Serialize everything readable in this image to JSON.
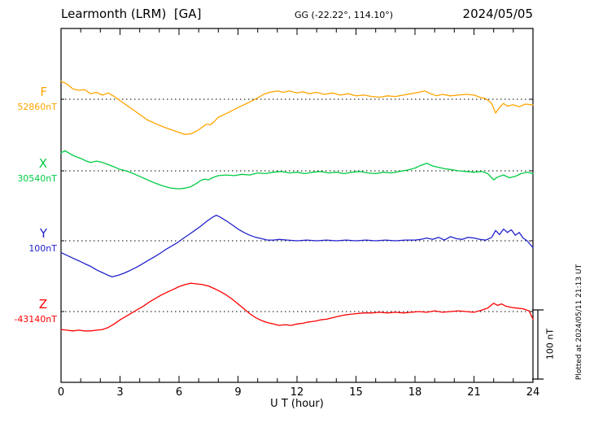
{
  "header": {
    "station": "Learmonth (LRM)  [GA]",
    "coords": "GG (-22.22°, 114.10°)",
    "date": "2024/05/05"
  },
  "side": {
    "scale_label": "100 nT",
    "plotted_at": "Plotted at 2024/05/11 21:13 UT"
  },
  "chart_data": {
    "type": "line",
    "title": "Learmonth (LRM) [GA] magnetogram 2024/05/05",
    "xlabel": "U T (hour)",
    "ylabel": "",
    "xlim": [
      0,
      24
    ],
    "x_ticks": [
      0,
      3,
      6,
      9,
      12,
      15,
      18,
      21,
      24
    ],
    "x_minor_step": 1,
    "grid": "dotted baseline per trace",
    "legend_position": "left margin, one colored label per trace",
    "scale_bar_nT": 100,
    "series": [
      {
        "name": "F",
        "color": "#FFA500",
        "base_label": "52860nT",
        "base_value_nT": 52860,
        "units": "nT offset from base value",
        "points": [
          [
            0,
            26
          ],
          [
            0.3,
            22
          ],
          [
            0.6,
            15
          ],
          [
            0.9,
            13
          ],
          [
            1.2,
            14
          ],
          [
            1.5,
            8
          ],
          [
            1.8,
            10
          ],
          [
            2.1,
            6
          ],
          [
            2.4,
            9
          ],
          [
            2.7,
            4
          ],
          [
            3,
            -2
          ],
          [
            3.3,
            -8
          ],
          [
            3.6,
            -14
          ],
          [
            4,
            -22
          ],
          [
            4.4,
            -30
          ],
          [
            4.8,
            -35
          ],
          [
            5.2,
            -40
          ],
          [
            5.6,
            -44
          ],
          [
            6,
            -48
          ],
          [
            6.3,
            -51
          ],
          [
            6.6,
            -50
          ],
          [
            6.9,
            -46
          ],
          [
            7.2,
            -40
          ],
          [
            7.4,
            -36
          ],
          [
            7.6,
            -37
          ],
          [
            7.8,
            -32
          ],
          [
            8,
            -26
          ],
          [
            8.3,
            -22
          ],
          [
            8.6,
            -18
          ],
          [
            9,
            -12
          ],
          [
            9.3,
            -8
          ],
          [
            9.6,
            -4
          ],
          [
            10,
            2
          ],
          [
            10.3,
            7
          ],
          [
            10.6,
            10
          ],
          [
            11,
            12
          ],
          [
            11.3,
            10
          ],
          [
            11.6,
            12
          ],
          [
            12,
            9
          ],
          [
            12.3,
            11
          ],
          [
            12.6,
            8
          ],
          [
            13,
            10
          ],
          [
            13.4,
            7
          ],
          [
            13.8,
            9
          ],
          [
            14.2,
            6
          ],
          [
            14.6,
            8
          ],
          [
            15,
            5
          ],
          [
            15.4,
            6
          ],
          [
            15.8,
            4
          ],
          [
            16.2,
            3
          ],
          [
            16.6,
            5
          ],
          [
            17,
            4
          ],
          [
            17.4,
            6
          ],
          [
            17.8,
            8
          ],
          [
            18.2,
            10
          ],
          [
            18.5,
            12
          ],
          [
            18.8,
            8
          ],
          [
            19.1,
            5
          ],
          [
            19.4,
            7
          ],
          [
            19.8,
            5
          ],
          [
            20.2,
            6
          ],
          [
            20.6,
            7
          ],
          [
            21,
            6
          ],
          [
            21.3,
            3
          ],
          [
            21.6,
            1
          ],
          [
            21.9,
            -6
          ],
          [
            22.1,
            -20
          ],
          [
            22.3,
            -12
          ],
          [
            22.5,
            -6
          ],
          [
            22.7,
            -10
          ],
          [
            23,
            -8
          ],
          [
            23.3,
            -11
          ],
          [
            23.6,
            -7
          ],
          [
            24,
            -8
          ]
        ]
      },
      {
        "name": "X",
        "color": "#00CC44",
        "base_label": "30540nT",
        "base_value_nT": 30540,
        "units": "nT offset from base value",
        "points": [
          [
            0,
            26
          ],
          [
            0.2,
            29
          ],
          [
            0.5,
            24
          ],
          [
            0.8,
            20
          ],
          [
            1,
            18
          ],
          [
            1.3,
            14
          ],
          [
            1.5,
            12
          ],
          [
            1.8,
            14
          ],
          [
            2,
            13
          ],
          [
            2.3,
            10
          ],
          [
            2.6,
            7
          ],
          [
            3,
            2
          ],
          [
            3.3,
            0
          ],
          [
            3.6,
            -3
          ],
          [
            4,
            -8
          ],
          [
            4.4,
            -13
          ],
          [
            4.8,
            -18
          ],
          [
            5.2,
            -22
          ],
          [
            5.6,
            -25
          ],
          [
            6,
            -26
          ],
          [
            6.3,
            -25
          ],
          [
            6.6,
            -23
          ],
          [
            6.9,
            -18
          ],
          [
            7.1,
            -14
          ],
          [
            7.3,
            -12
          ],
          [
            7.5,
            -13
          ],
          [
            7.7,
            -10
          ],
          [
            8,
            -7
          ],
          [
            8.4,
            -6
          ],
          [
            8.8,
            -7
          ],
          [
            9.2,
            -5
          ],
          [
            9.6,
            -6
          ],
          [
            10,
            -3
          ],
          [
            10.4,
            -4
          ],
          [
            10.8,
            -2
          ],
          [
            11.2,
            -1
          ],
          [
            11.6,
            -3
          ],
          [
            12,
            -2
          ],
          [
            12.4,
            -4
          ],
          [
            12.8,
            -2
          ],
          [
            13.2,
            -1
          ],
          [
            13.6,
            -3
          ],
          [
            14,
            -2
          ],
          [
            14.4,
            -4
          ],
          [
            14.8,
            -2
          ],
          [
            15.2,
            -1
          ],
          [
            15.6,
            -3
          ],
          [
            16,
            -4
          ],
          [
            16.4,
            -2
          ],
          [
            16.8,
            -3
          ],
          [
            17.2,
            -1
          ],
          [
            17.6,
            1
          ],
          [
            18,
            4
          ],
          [
            18.3,
            8
          ],
          [
            18.6,
            11
          ],
          [
            18.9,
            7
          ],
          [
            19.2,
            5
          ],
          [
            19.5,
            3
          ],
          [
            19.8,
            2
          ],
          [
            20.2,
            0
          ],
          [
            20.6,
            -1
          ],
          [
            21,
            -2
          ],
          [
            21.4,
            -1
          ],
          [
            21.7,
            -4
          ],
          [
            22,
            -13
          ],
          [
            22.2,
            -9
          ],
          [
            22.5,
            -6
          ],
          [
            22.8,
            -10
          ],
          [
            23.1,
            -8
          ],
          [
            23.4,
            -4
          ],
          [
            23.7,
            -2
          ],
          [
            24,
            -4
          ]
        ]
      },
      {
        "name": "Y",
        "color": "#2222CC",
        "base_label": "100nT",
        "base_value_nT": 100,
        "units": "nT offset from base value",
        "points": [
          [
            0,
            -17
          ],
          [
            0.3,
            -21
          ],
          [
            0.6,
            -25
          ],
          [
            0.9,
            -29
          ],
          [
            1.2,
            -33
          ],
          [
            1.5,
            -37
          ],
          [
            1.8,
            -42
          ],
          [
            2.1,
            -46
          ],
          [
            2.4,
            -50
          ],
          [
            2.6,
            -52
          ],
          [
            2.9,
            -50
          ],
          [
            3.2,
            -47
          ],
          [
            3.5,
            -43
          ],
          [
            3.8,
            -39
          ],
          [
            4.1,
            -34
          ],
          [
            4.4,
            -29
          ],
          [
            4.7,
            -24
          ],
          [
            5,
            -19
          ],
          [
            5.3,
            -13
          ],
          [
            5.6,
            -8
          ],
          [
            5.9,
            -3
          ],
          [
            6.2,
            3
          ],
          [
            6.5,
            9
          ],
          [
            6.8,
            15
          ],
          [
            7.1,
            21
          ],
          [
            7.4,
            28
          ],
          [
            7.7,
            34
          ],
          [
            7.9,
            37
          ],
          [
            8.1,
            34
          ],
          [
            8.4,
            29
          ],
          [
            8.7,
            23
          ],
          [
            9,
            17
          ],
          [
            9.3,
            12
          ],
          [
            9.6,
            8
          ],
          [
            9.9,
            5
          ],
          [
            10.2,
            3
          ],
          [
            10.5,
            1
          ],
          [
            10.8,
            1
          ],
          [
            11.1,
            2
          ],
          [
            11.5,
            1
          ],
          [
            12,
            0
          ],
          [
            12.5,
            1
          ],
          [
            13,
            0
          ],
          [
            13.5,
            1
          ],
          [
            14,
            0
          ],
          [
            14.5,
            1
          ],
          [
            15,
            0
          ],
          [
            15.5,
            1
          ],
          [
            16,
            0
          ],
          [
            16.5,
            1
          ],
          [
            17,
            0
          ],
          [
            17.5,
            1
          ],
          [
            18,
            1
          ],
          [
            18.3,
            2
          ],
          [
            18.6,
            4
          ],
          [
            18.9,
            2
          ],
          [
            19.2,
            5
          ],
          [
            19.5,
            1
          ],
          [
            19.8,
            6
          ],
          [
            20.1,
            3
          ],
          [
            20.4,
            2
          ],
          [
            20.7,
            5
          ],
          [
            21,
            4
          ],
          [
            21.3,
            2
          ],
          [
            21.6,
            1
          ],
          [
            21.9,
            5
          ],
          [
            22.1,
            15
          ],
          [
            22.3,
            9
          ],
          [
            22.5,
            17
          ],
          [
            22.7,
            12
          ],
          [
            22.9,
            16
          ],
          [
            23.1,
            8
          ],
          [
            23.3,
            12
          ],
          [
            23.5,
            4
          ],
          [
            23.7,
            0
          ],
          [
            24,
            -10
          ]
        ]
      },
      {
        "name": "Z",
        "color": "#FF0000",
        "base_label": "-43140nT",
        "base_value_nT": -43140,
        "units": "nT offset from base value",
        "points": [
          [
            0,
            -26
          ],
          [
            0.3,
            -27
          ],
          [
            0.6,
            -28
          ],
          [
            0.9,
            -27
          ],
          [
            1.2,
            -28
          ],
          [
            1.5,
            -28
          ],
          [
            1.8,
            -27
          ],
          [
            2.1,
            -26
          ],
          [
            2.4,
            -23
          ],
          [
            2.7,
            -18
          ],
          [
            3,
            -12
          ],
          [
            3.3,
            -7
          ],
          [
            3.6,
            -2
          ],
          [
            3.9,
            3
          ],
          [
            4.2,
            8
          ],
          [
            4.5,
            14
          ],
          [
            4.8,
            19
          ],
          [
            5.1,
            24
          ],
          [
            5.4,
            28
          ],
          [
            5.7,
            32
          ],
          [
            6,
            36
          ],
          [
            6.3,
            39
          ],
          [
            6.6,
            41
          ],
          [
            6.9,
            40
          ],
          [
            7.2,
            39
          ],
          [
            7.5,
            37
          ],
          [
            7.8,
            33
          ],
          [
            8.1,
            29
          ],
          [
            8.4,
            24
          ],
          [
            8.7,
            18
          ],
          [
            9,
            11
          ],
          [
            9.3,
            4
          ],
          [
            9.6,
            -3
          ],
          [
            9.9,
            -9
          ],
          [
            10.2,
            -13
          ],
          [
            10.5,
            -16
          ],
          [
            10.8,
            -18
          ],
          [
            11.1,
            -20
          ],
          [
            11.4,
            -19
          ],
          [
            11.7,
            -20
          ],
          [
            12,
            -18
          ],
          [
            12.3,
            -17
          ],
          [
            12.6,
            -15
          ],
          [
            12.9,
            -14
          ],
          [
            13.2,
            -12
          ],
          [
            13.5,
            -11
          ],
          [
            13.8,
            -9
          ],
          [
            14.1,
            -7
          ],
          [
            14.4,
            -5
          ],
          [
            14.7,
            -4
          ],
          [
            15,
            -3
          ],
          [
            15.4,
            -2
          ],
          [
            15.8,
            -2
          ],
          [
            16.2,
            -1
          ],
          [
            16.6,
            -2
          ],
          [
            17,
            -1
          ],
          [
            17.4,
            -2
          ],
          [
            17.8,
            -1
          ],
          [
            18.2,
            0
          ],
          [
            18.6,
            -1
          ],
          [
            19,
            1
          ],
          [
            19.4,
            -1
          ],
          [
            19.8,
            0
          ],
          [
            20.2,
            1
          ],
          [
            20.6,
            0
          ],
          [
            21,
            -1
          ],
          [
            21.4,
            2
          ],
          [
            21.7,
            5
          ],
          [
            22,
            12
          ],
          [
            22.2,
            9
          ],
          [
            22.4,
            11
          ],
          [
            22.6,
            8
          ],
          [
            22.9,
            6
          ],
          [
            23.2,
            5
          ],
          [
            23.5,
            4
          ],
          [
            23.8,
            1
          ],
          [
            24,
            -11
          ]
        ]
      }
    ]
  }
}
